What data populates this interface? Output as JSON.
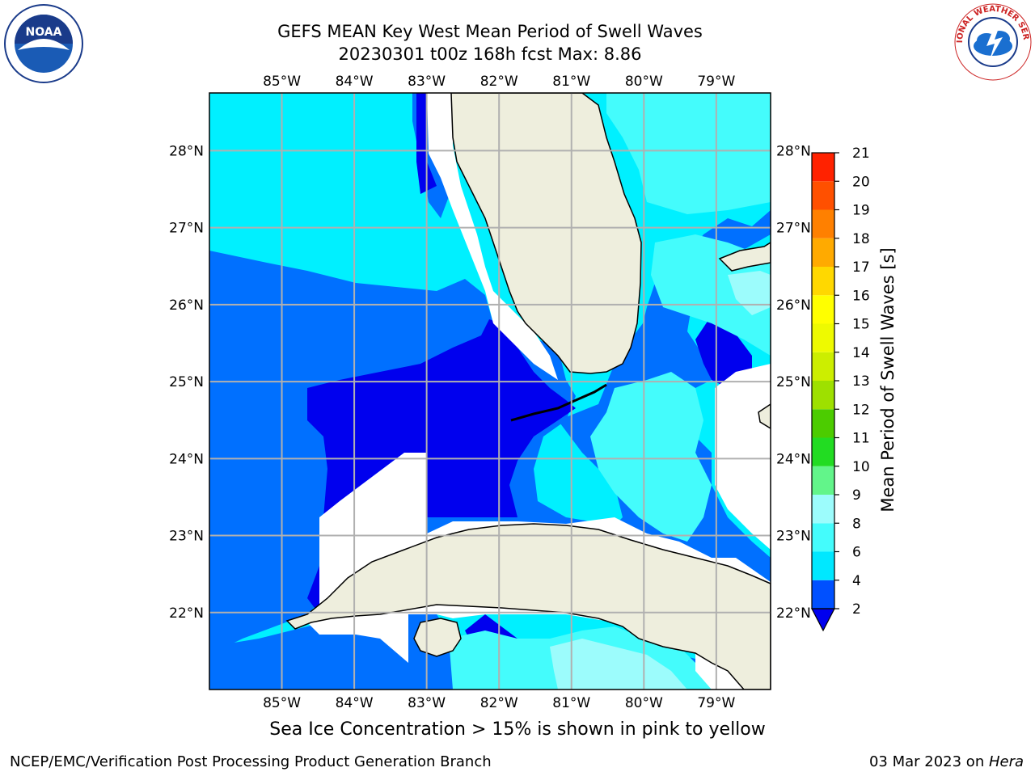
{
  "header": {
    "title_line1": "GEFS MEAN Key West Mean Period of Swell Waves",
    "title_line2": "20230301 t00z 168h fcst   Max: 8.86"
  },
  "logos": {
    "left": {
      "name": "noaa-logo",
      "text": "NOAA"
    },
    "right": {
      "name": "nws-logo",
      "text": "NATIONAL WEATHER SERVICE"
    }
  },
  "map": {
    "lon_labels": [
      "85°W",
      "84°W",
      "83°W",
      "82°W",
      "81°W",
      "80°W",
      "79°W"
    ],
    "lat_labels": [
      "28°N",
      "27°N",
      "26°N",
      "25°N",
      "24°N",
      "23°N",
      "22°N"
    ],
    "lon_range": [
      -86.0,
      -78.25
    ],
    "lat_range": [
      21.0,
      28.75
    ],
    "land_color": "#eeeedd",
    "grid_color": "#b0b0b0"
  },
  "colorbar": {
    "title": "Mean Period of Swell Waves [s]",
    "ticks": [
      "2",
      "4",
      "6",
      "8",
      "9",
      "10",
      "11",
      "12",
      "13",
      "14",
      "15",
      "16",
      "17",
      "18",
      "19",
      "20",
      "21"
    ],
    "colors": [
      "#0050ff",
      "#00e8ff",
      "#44fcfc",
      "#9cfcfc",
      "#62f58a",
      "#22dc22",
      "#4ccc00",
      "#9ee000",
      "#ccee00",
      "#eefa00",
      "#ffff00",
      "#ffd800",
      "#ffaa00",
      "#ff8000",
      "#ff5000",
      "#ff2200",
      "#ff0000"
    ],
    "extend_color": "#0000ee"
  },
  "field_colors": {
    "p2": "#0000ee",
    "p4": "#0070ff",
    "p6": "#00f0ff",
    "p8": "#44fcfc",
    "p9": "#9cfcfc"
  },
  "notes": {
    "ice": "Sea Ice Concentration > 15% is shown in pink to yellow"
  },
  "footer": {
    "left": "NCEP/EMC/Verification Post Processing Product Generation Branch",
    "date": "03 Mar 2023 on ",
    "machine": "Hera"
  }
}
